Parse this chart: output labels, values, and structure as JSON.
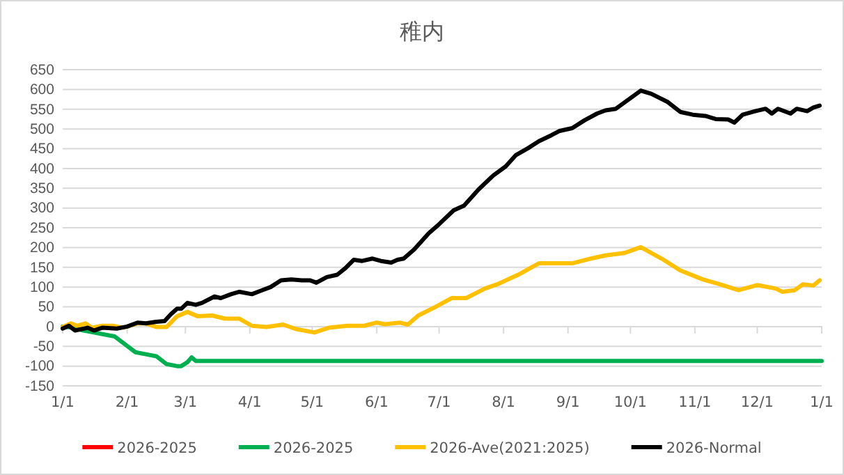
{
  "chart_data": {
    "type": "line",
    "title": "稚内",
    "xlim": [
      "2026-01-01",
      "2027-01-01"
    ],
    "xticks": [
      {
        "value": "2026-01-01",
        "label": "1/1"
      },
      {
        "value": "2026-02-01",
        "label": "2/1"
      },
      {
        "value": "2026-03-01",
        "label": "3/1"
      },
      {
        "value": "2026-04-01",
        "label": "4/1"
      },
      {
        "value": "2026-05-01",
        "label": "5/1"
      },
      {
        "value": "2026-06-01",
        "label": "6/1"
      },
      {
        "value": "2026-07-01",
        "label": "7/1"
      },
      {
        "value": "2026-08-01",
        "label": "8/1"
      },
      {
        "value": "2026-09-01",
        "label": "9/1"
      },
      {
        "value": "2026-10-01",
        "label": "10/1"
      },
      {
        "value": "2026-11-01",
        "label": "11/1"
      },
      {
        "value": "2026-12-01",
        "label": "12/1"
      },
      {
        "value": "2027-01-01",
        "label": "1/1"
      }
    ],
    "ylim": [
      -150,
      650
    ],
    "yticks": [
      -150,
      -100,
      -50,
      0,
      50,
      100,
      150,
      200,
      250,
      300,
      350,
      400,
      450,
      500,
      550,
      600,
      650
    ],
    "grid": "y",
    "legend": "bottom",
    "marker": "none",
    "line_style": "solid",
    "series": [
      {
        "name": "2026-2025",
        "color": "#ff0000"
      },
      {
        "name": "2026-2025",
        "color": "#00b050",
        "x": [
          "2026-01-01",
          "2026-01-06",
          "2026-01-11",
          "2026-01-16",
          "2026-01-21",
          "2026-01-26",
          "2026-01-31",
          "2026-02-05",
          "2026-02-10",
          "2026-02-15",
          "2026-02-20",
          "2026-02-25",
          "2026-02-27",
          "2026-03-02",
          "2026-03-04",
          "2026-03-06",
          "2027-01-01"
        ],
        "values": [
          0,
          -3,
          -10,
          -15,
          -20,
          -25,
          -45,
          -65,
          -70,
          -75,
          -95,
          -100,
          -100,
          -90,
          -78,
          -87,
          -87
        ]
      },
      {
        "name": "2026-Ave(2021:2025)",
        "color": "#ffc000",
        "x": [
          "2026-01-01",
          "2026-01-05",
          "2026-01-08",
          "2026-01-12",
          "2026-01-15",
          "2026-01-20",
          "2026-01-25",
          "2026-01-30",
          "2026-02-06",
          "2026-02-10",
          "2026-02-15",
          "2026-02-20",
          "2026-02-25",
          "2026-03-02",
          "2026-03-07",
          "2026-03-14",
          "2026-03-20",
          "2026-03-27",
          "2026-04-02",
          "2026-04-09",
          "2026-04-17",
          "2026-04-23",
          "2026-05-02",
          "2026-05-09",
          "2026-05-18",
          "2026-05-26",
          "2026-06-01",
          "2026-06-05",
          "2026-06-12",
          "2026-06-16",
          "2026-06-21",
          "2026-06-29",
          "2026-07-07",
          "2026-07-14",
          "2026-07-23",
          "2026-07-29",
          "2026-08-08",
          "2026-08-18",
          "2026-08-25",
          "2026-09-03",
          "2026-09-12",
          "2026-09-19",
          "2026-09-28",
          "2026-10-06",
          "2026-10-16",
          "2026-10-25",
          "2026-11-05",
          "2026-11-13",
          "2026-11-22",
          "2026-12-01",
          "2026-12-10",
          "2026-12-13",
          "2026-12-19",
          "2026-12-23",
          "2026-12-28",
          "2026-12-31"
        ],
        "values": [
          -1,
          8,
          2,
          8,
          -3,
          2,
          2,
          -3,
          8,
          8,
          -1,
          -1,
          26,
          37,
          26,
          28,
          20,
          20,
          2,
          -1,
          5,
          -6,
          -15,
          -3,
          2,
          2,
          10,
          6,
          10,
          5,
          28,
          49,
          72,
          72,
          96,
          107,
          131,
          160,
          160,
          160,
          172,
          180,
          186,
          201,
          172,
          142,
          119,
          107,
          92,
          105,
          96,
          88,
          92,
          107,
          104,
          117
        ]
      },
      {
        "name": "2026-Normal",
        "color": "#000000",
        "x": [
          "2026-01-01",
          "2026-01-04",
          "2026-01-07",
          "2026-01-13",
          "2026-01-16",
          "2026-01-20",
          "2026-01-27",
          "2026-02-01",
          "2026-02-06",
          "2026-02-10",
          "2026-02-15",
          "2026-02-19",
          "2026-02-22",
          "2026-02-25",
          "2026-02-27",
          "2026-03-02",
          "2026-03-06",
          "2026-03-09",
          "2026-03-15",
          "2026-03-18",
          "2026-03-23",
          "2026-03-27",
          "2026-04-02",
          "2026-04-06",
          "2026-04-11",
          "2026-04-16",
          "2026-04-21",
          "2026-04-26",
          "2026-04-30",
          "2026-05-03",
          "2026-05-08",
          "2026-05-13",
          "2026-05-17",
          "2026-05-21",
          "2026-05-25",
          "2026-05-30",
          "2026-06-03",
          "2026-06-08",
          "2026-06-11",
          "2026-06-14",
          "2026-06-19",
          "2026-06-26",
          "2026-07-01",
          "2026-07-08",
          "2026-07-13",
          "2026-07-20",
          "2026-07-27",
          "2026-08-02",
          "2026-08-07",
          "2026-08-13",
          "2026-08-18",
          "2026-08-24",
          "2026-08-28",
          "2026-09-03",
          "2026-09-09",
          "2026-09-15",
          "2026-09-19",
          "2026-09-24",
          "2026-09-30",
          "2026-10-06",
          "2026-10-11",
          "2026-10-19",
          "2026-10-25",
          "2026-10-31",
          "2026-11-06",
          "2026-11-11",
          "2026-11-17",
          "2026-11-20",
          "2026-11-24",
          "2026-11-30",
          "2026-12-05",
          "2026-12-08",
          "2026-12-11",
          "2026-12-17",
          "2026-12-20",
          "2026-12-25",
          "2026-12-28",
          "2026-12-31"
        ],
        "values": [
          -5,
          2,
          -10,
          -3,
          -10,
          -3,
          -5,
          0,
          10,
          8,
          12,
          14,
          31,
          45,
          45,
          60,
          55,
          60,
          76,
          72,
          82,
          88,
          82,
          90,
          100,
          117,
          119,
          117,
          117,
          111,
          125,
          131,
          148,
          169,
          166,
          172,
          166,
          162,
          169,
          172,
          195,
          236,
          259,
          294,
          306,
          347,
          382,
          405,
          434,
          452,
          469,
          484,
          495,
          502,
          522,
          539,
          547,
          551,
          574,
          597,
          589,
          568,
          543,
          536,
          533,
          525,
          524,
          516,
          536,
          545,
          551,
          539,
          551,
          539,
          551,
          545,
          554,
          559
        ]
      }
    ]
  }
}
